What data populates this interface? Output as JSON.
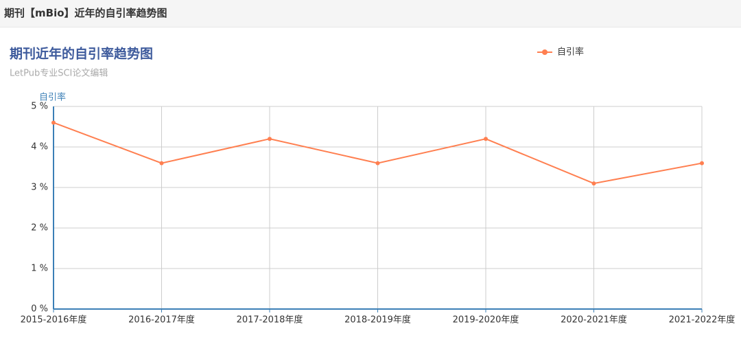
{
  "header": {
    "title": "期刊【mBio】近年的自引率趋势图"
  },
  "chart_data": {
    "type": "line",
    "title": "期刊近年的自引率趋势图",
    "subtitle": "LetPub专业SCI论文编辑",
    "y_label": "自引率",
    "categories": [
      "2015-2016年度",
      "2016-2017年度",
      "2017-2018年度",
      "2018-2019年度",
      "2019-2020年度",
      "2020-2021年度",
      "2021-2022年度"
    ],
    "series": [
      {
        "name": "自引率",
        "color": "#ff7f50",
        "values": [
          4.6,
          3.6,
          4.2,
          3.6,
          4.2,
          3.1,
          3.6
        ]
      }
    ],
    "ylim": [
      0,
      5
    ],
    "yticks": [
      {
        "value": 0,
        "label": "0 %"
      },
      {
        "value": 1,
        "label": "1 %"
      },
      {
        "value": 2,
        "label": "2 %"
      },
      {
        "value": 3,
        "label": "3 %"
      },
      {
        "value": 4,
        "label": "4 %"
      },
      {
        "value": 5,
        "label": "5 %"
      }
    ],
    "grid": true,
    "legend": "top-right"
  }
}
